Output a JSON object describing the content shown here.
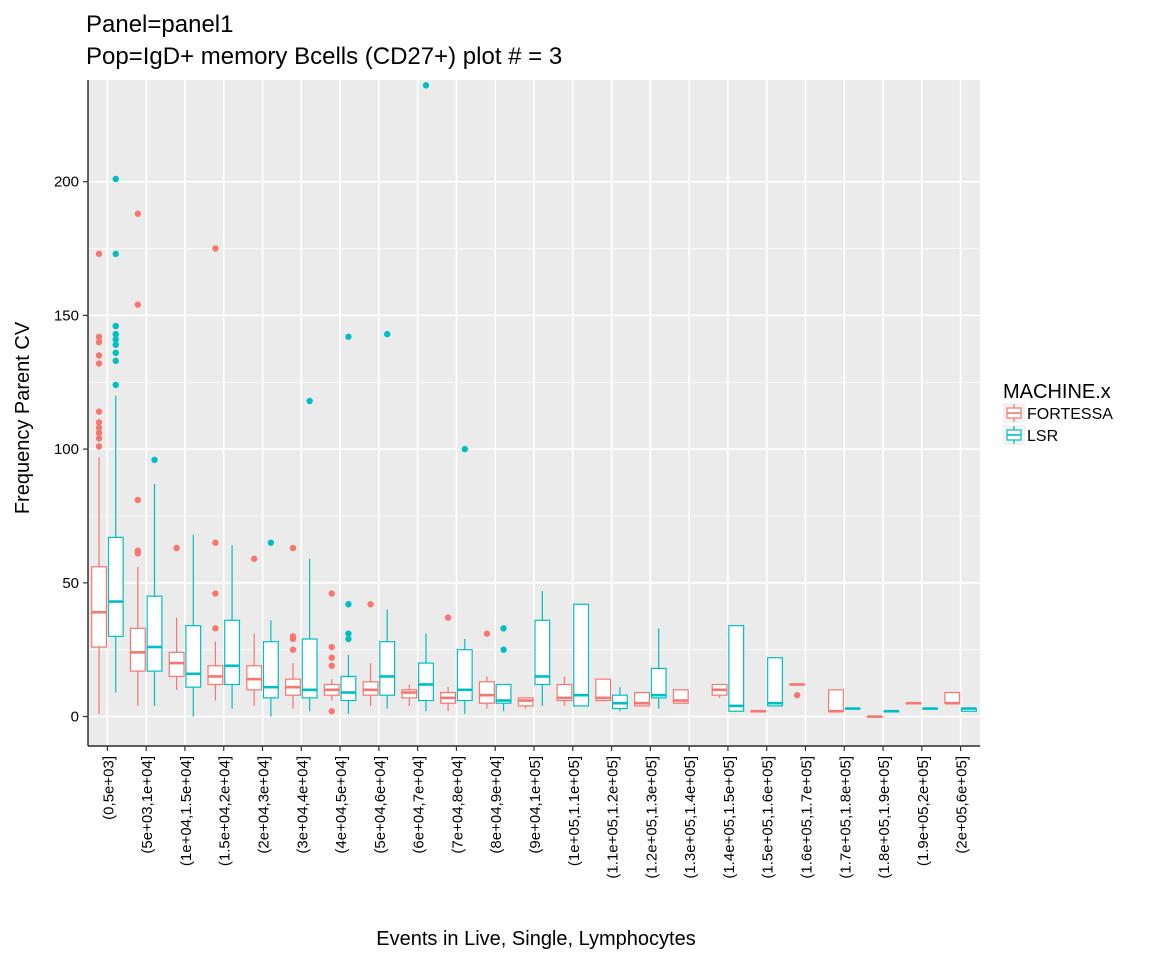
{
  "chart_data": {
    "type": "box",
    "title": "Panel=panel1",
    "subtitle": "Pop=IgD+ memory Bcells (CD27+) plot # = 3",
    "xlabel": "Events in Live, Single, Lymphocytes",
    "ylabel": "Frequency Parent CV",
    "ylim": [
      -11,
      238
    ],
    "yticks": [
      0,
      50,
      100,
      150,
      200
    ],
    "grid": true,
    "legend": {
      "title": "MACHINE.x",
      "placement": "right",
      "entries": [
        "FORTESSA",
        "LSR"
      ]
    },
    "colors": {
      "FORTESSA": "#F8766D",
      "LSR": "#00BFC4",
      "panel_bg": "#EBEBEB",
      "grid": "#FFFFFF"
    },
    "categories": [
      "(0,5e+03]",
      "(5e+03,1e+04]",
      "(1e+04,1.5e+04]",
      "(1.5e+04,2e+04]",
      "(2e+04,3e+04]",
      "(3e+04,4e+04]",
      "(4e+04,5e+04]",
      "(5e+04,6e+04]",
      "(6e+04,7e+04]",
      "(7e+04,8e+04]",
      "(8e+04,9e+04]",
      "(9e+04,1e+05]",
      "(1e+05,1.1e+05]",
      "(1.1e+05,1.2e+05]",
      "(1.2e+05,1.3e+05]",
      "(1.3e+05,1.4e+05]",
      "(1.4e+05,1.5e+05]",
      "(1.5e+05,1.6e+05]",
      "(1.6e+05,1.7e+05]",
      "(1.7e+05,1.8e+05]",
      "(1.8e+05,1.9e+05]",
      "(1.9e+05,2e+05]",
      "(2e+05,6e+05]"
    ],
    "series": [
      {
        "name": "FORTESSA",
        "boxes": [
          {
            "cat": 0,
            "min": 1,
            "q1": 26,
            "median": 39,
            "q3": 56,
            "max": 97,
            "outliers": [
              101,
              104,
              106,
              108,
              110,
              114,
              132,
              135,
              140,
              142,
              173
            ]
          },
          {
            "cat": 1,
            "min": 4,
            "q1": 17,
            "median": 24,
            "q3": 33,
            "max": 56,
            "outliers": [
              61,
              62,
              81,
              154,
              188
            ]
          },
          {
            "cat": 2,
            "min": 10,
            "q1": 15,
            "median": 20,
            "q3": 24,
            "max": 37,
            "outliers": [
              63
            ]
          },
          {
            "cat": 3,
            "min": 6,
            "q1": 12,
            "median": 15,
            "q3": 19,
            "max": 28,
            "outliers": [
              33,
              46,
              65,
              175
            ]
          },
          {
            "cat": 4,
            "min": 4,
            "q1": 10,
            "median": 14,
            "q3": 19,
            "max": 31,
            "outliers": [
              59
            ]
          },
          {
            "cat": 5,
            "min": 3,
            "q1": 8,
            "median": 11,
            "q3": 14,
            "max": 20,
            "outliers": [
              25,
              29,
              30,
              63
            ]
          },
          {
            "cat": 6,
            "min": 6,
            "q1": 8,
            "median": 10,
            "q3": 12,
            "max": 14,
            "outliers": [
              2,
              19,
              22,
              26,
              46
            ]
          },
          {
            "cat": 7,
            "min": 4,
            "q1": 8,
            "median": 10,
            "q3": 13,
            "max": 20,
            "outliers": [
              42
            ]
          },
          {
            "cat": 8,
            "min": 4,
            "q1": 7,
            "median": 9,
            "q3": 10,
            "max": 12,
            "outliers": []
          },
          {
            "cat": 9,
            "min": 2,
            "q1": 5,
            "median": 7,
            "q3": 9,
            "max": 11,
            "outliers": [
              37
            ]
          },
          {
            "cat": 10,
            "min": 3,
            "q1": 5,
            "median": 8,
            "q3": 13,
            "max": 15,
            "outliers": [
              31
            ]
          },
          {
            "cat": 11,
            "min": 3,
            "q1": 4,
            "median": 6,
            "q3": 7,
            "max": 7,
            "outliers": []
          },
          {
            "cat": 12,
            "min": 4,
            "q1": 6,
            "median": 7,
            "q3": 12,
            "max": 15,
            "outliers": []
          },
          {
            "cat": 13,
            "min": 6,
            "q1": 6,
            "median": 7,
            "q3": 14,
            "max": 14,
            "outliers": []
          },
          {
            "cat": 14,
            "min": 4,
            "q1": 4,
            "median": 5,
            "q3": 9,
            "max": 9,
            "outliers": []
          },
          {
            "cat": 15,
            "min": 5,
            "q1": 5,
            "median": 6,
            "q3": 10,
            "max": 10,
            "outliers": []
          },
          {
            "cat": 16,
            "min": 7,
            "q1": 8,
            "median": 10,
            "q3": 12,
            "max": 12,
            "outliers": []
          },
          {
            "cat": 17,
            "min": 2,
            "q1": 2,
            "median": 2,
            "q3": 2,
            "max": 2,
            "outliers": []
          },
          {
            "cat": 18,
            "min": 12,
            "q1": 12,
            "median": 12,
            "q3": 12,
            "max": 12,
            "outliers": [
              8
            ]
          },
          {
            "cat": 19,
            "min": 2,
            "q1": 2,
            "median": 2,
            "q3": 10,
            "max": 10,
            "outliers": []
          },
          {
            "cat": 20,
            "min": 0,
            "q1": 0,
            "median": 0,
            "q3": 0,
            "max": 0,
            "outliers": []
          },
          {
            "cat": 21,
            "min": 5,
            "q1": 5,
            "median": 5,
            "q3": 5,
            "max": 5,
            "outliers": []
          },
          {
            "cat": 22,
            "min": 5,
            "q1": 5,
            "median": 5,
            "q3": 9,
            "max": 9,
            "outliers": []
          }
        ]
      },
      {
        "name": "LSR",
        "boxes": [
          {
            "cat": 0,
            "min": 9,
            "q1": 30,
            "median": 43,
            "q3": 67,
            "max": 120,
            "outliers": [
              124,
              133,
              136,
              139,
              141,
              143,
              146,
              173,
              201
            ]
          },
          {
            "cat": 1,
            "min": 4,
            "q1": 17,
            "median": 26,
            "q3": 45,
            "max": 87,
            "outliers": [
              96
            ]
          },
          {
            "cat": 2,
            "min": 0,
            "q1": 11,
            "median": 16,
            "q3": 34,
            "max": 68,
            "outliers": []
          },
          {
            "cat": 3,
            "min": 3,
            "q1": 12,
            "median": 19,
            "q3": 36,
            "max": 64,
            "outliers": []
          },
          {
            "cat": 4,
            "min": 0,
            "q1": 7,
            "median": 11,
            "q3": 28,
            "max": 36,
            "outliers": [
              65
            ]
          },
          {
            "cat": 5,
            "min": 2,
            "q1": 7,
            "median": 10,
            "q3": 29,
            "max": 59,
            "outliers": [
              118
            ]
          },
          {
            "cat": 6,
            "min": 1,
            "q1": 6,
            "median": 9,
            "q3": 15,
            "max": 23,
            "outliers": [
              29,
              31,
              42,
              142
            ]
          },
          {
            "cat": 7,
            "min": 3,
            "q1": 8,
            "median": 15,
            "q3": 28,
            "max": 40,
            "outliers": [
              143
            ]
          },
          {
            "cat": 8,
            "min": 2,
            "q1": 6,
            "median": 12,
            "q3": 20,
            "max": 31,
            "outliers": [
              236
            ]
          },
          {
            "cat": 9,
            "min": 1,
            "q1": 6,
            "median": 10,
            "q3": 25,
            "max": 29,
            "outliers": [
              100
            ]
          },
          {
            "cat": 10,
            "min": 2,
            "q1": 5,
            "median": 6,
            "q3": 12,
            "max": 12,
            "outliers": [
              25,
              33
            ]
          },
          {
            "cat": 11,
            "min": 4,
            "q1": 12,
            "median": 15,
            "q3": 36,
            "max": 47,
            "outliers": []
          },
          {
            "cat": 12,
            "min": 4,
            "q1": 4,
            "median": 8,
            "q3": 42,
            "max": 42,
            "outliers": []
          },
          {
            "cat": 13,
            "min": 2,
            "q1": 3,
            "median": 5,
            "q3": 8,
            "max": 11,
            "outliers": []
          },
          {
            "cat": 14,
            "min": 3,
            "q1": 7,
            "median": 8,
            "q3": 18,
            "max": 33,
            "outliers": []
          },
          {
            "cat": 16,
            "min": 2,
            "q1": 2,
            "median": 4,
            "q3": 34,
            "max": 34,
            "outliers": []
          },
          {
            "cat": 17,
            "min": 4,
            "q1": 4,
            "median": 5,
            "q3": 22,
            "max": 22,
            "outliers": []
          },
          {
            "cat": 19,
            "min": 3,
            "q1": 3,
            "median": 3,
            "q3": 3,
            "max": 3,
            "outliers": []
          },
          {
            "cat": 20,
            "min": 2,
            "q1": 2,
            "median": 2,
            "q3": 2,
            "max": 2,
            "outliers": []
          },
          {
            "cat": 21,
            "min": 3,
            "q1": 3,
            "median": 3,
            "q3": 3,
            "max": 3,
            "outliers": []
          },
          {
            "cat": 22,
            "min": 2,
            "q1": 2,
            "median": 3,
            "q3": 3,
            "max": 3,
            "outliers": []
          }
        ]
      }
    ]
  }
}
